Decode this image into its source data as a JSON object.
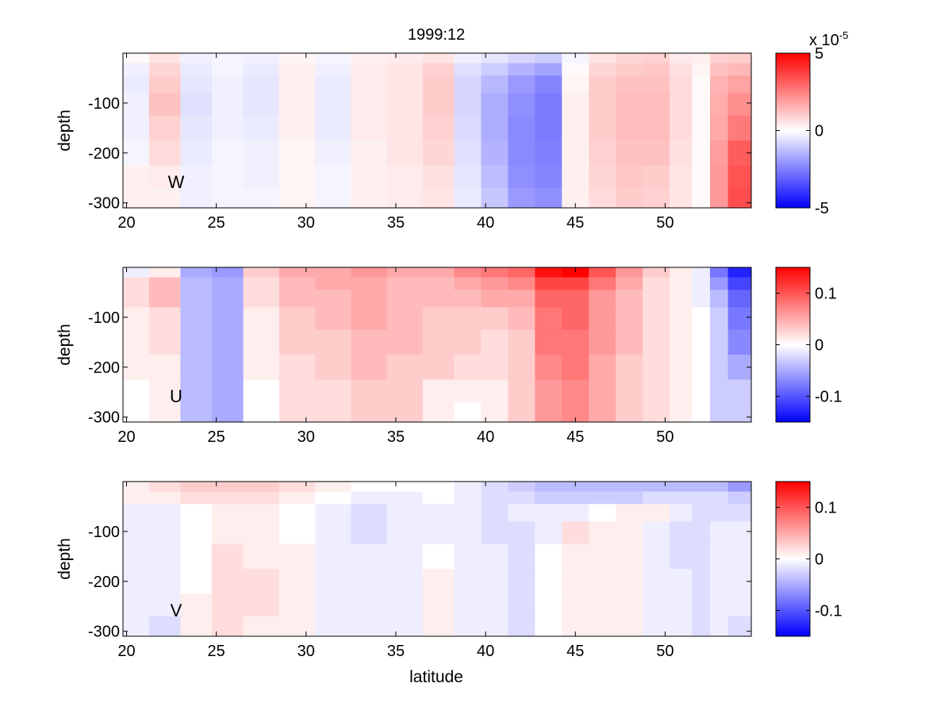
{
  "chart_data": {
    "type": "heatmap",
    "title": "1999:12",
    "xlabel": "latitude",
    "panels": [
      {
        "name": "W",
        "label": "W",
        "ylabel": "depth",
        "xlim": [
          19.8,
          54.8
        ],
        "ylim": [
          -310,
          0
        ],
        "xticks": [
          "20",
          "25",
          "30",
          "35",
          "40",
          "45",
          "50"
        ],
        "yticks": [
          "-100",
          "-200",
          "-300"
        ],
        "colorbar": {
          "clim": [
            -5,
            5
          ],
          "ticks": [
            "5",
            "0",
            "-5"
          ],
          "scale_label": "x 10",
          "scale_exp": "-5"
        },
        "columns_lat": [
          20.5,
          22,
          24,
          25.5,
          27.5,
          29.5,
          31.5,
          33.5,
          35.5,
          37.5,
          39,
          40.5,
          42,
          43.5,
          45,
          46.5,
          48,
          49.5,
          51,
          52,
          53,
          54
        ],
        "depth_rows": [
          -10,
          -30,
          -60,
          -100,
          -150,
          -200,
          -250,
          -290
        ],
        "values": [
          [
            0.1,
            0.5,
            -0.3,
            -0.2,
            -0.3,
            0.2,
            -0.2,
            0.3,
            0.4,
            0.5,
            -0.3,
            -0.5,
            -0.8,
            -1.0,
            -0.2,
            0.5,
            0.8,
            0.9,
            0.4,
            0.3,
            0.9,
            1.0
          ],
          [
            -0.3,
            0.8,
            -0.4,
            -0.2,
            -0.4,
            0.3,
            -0.3,
            0.4,
            0.5,
            0.9,
            -0.6,
            -1.0,
            -1.5,
            -1.8,
            0.1,
            0.8,
            1.0,
            1.1,
            0.6,
            0.2,
            1.2,
            1.4
          ],
          [
            -0.4,
            1.0,
            -0.5,
            -0.3,
            -0.5,
            0.3,
            -0.4,
            0.4,
            0.5,
            1.0,
            -0.8,
            -1.4,
            -2.0,
            -2.4,
            0.2,
            1.0,
            1.2,
            1.2,
            0.7,
            0.1,
            1.5,
            1.8
          ],
          [
            -0.3,
            1.2,
            -0.6,
            -0.3,
            -0.5,
            0.3,
            -0.4,
            0.4,
            0.5,
            1.0,
            -0.8,
            -1.6,
            -2.2,
            -2.6,
            0.3,
            1.0,
            1.3,
            1.3,
            0.7,
            0.1,
            1.6,
            2.2
          ],
          [
            -0.3,
            0.9,
            -0.5,
            -0.3,
            -0.4,
            0.3,
            -0.4,
            0.4,
            0.5,
            0.9,
            -0.7,
            -1.6,
            -2.3,
            -2.6,
            0.3,
            1.0,
            1.3,
            1.3,
            0.7,
            0.1,
            1.7,
            2.6
          ],
          [
            -0.2,
            0.7,
            -0.4,
            -0.2,
            -0.3,
            0.2,
            -0.3,
            0.3,
            0.5,
            0.8,
            -0.6,
            -1.5,
            -2.3,
            -2.5,
            0.3,
            0.9,
            1.2,
            1.2,
            0.6,
            0.1,
            1.9,
            3.2
          ],
          [
            0.3,
            0.4,
            -0.3,
            -0.2,
            -0.3,
            0.2,
            -0.2,
            0.3,
            0.4,
            0.6,
            -0.5,
            -1.3,
            -2.2,
            -2.4,
            0.3,
            0.8,
            1.1,
            1.0,
            0.5,
            0.1,
            2.0,
            3.4
          ],
          [
            0.3,
            0.3,
            -0.3,
            -0.2,
            -0.2,
            0.2,
            -0.2,
            0.3,
            0.4,
            0.5,
            -0.4,
            -1.1,
            -2.0,
            -2.2,
            0.3,
            0.7,
            1.0,
            0.9,
            0.5,
            0.1,
            2.0,
            3.5
          ]
        ]
      },
      {
        "name": "U",
        "label": "U",
        "ylabel": "depth",
        "xlim": [
          19.8,
          54.8
        ],
        "ylim": [
          -310,
          0
        ],
        "xticks": [
          "20",
          "25",
          "30",
          "35",
          "40",
          "45",
          "50"
        ],
        "yticks": [
          "-100",
          "-200",
          "-300"
        ],
        "colorbar": {
          "clim": [
            -0.15,
            0.15
          ],
          "ticks": [
            "0.1",
            "0",
            "-0.1"
          ]
        },
        "columns_lat": [
          20.5,
          22,
          24,
          25.5,
          27.5,
          29.5,
          31.5,
          33.5,
          35.5,
          37.5,
          39,
          40.5,
          42,
          43.5,
          45,
          46.5,
          48,
          49.5,
          51,
          52,
          53,
          54
        ],
        "depth_rows": [
          -10,
          -30,
          -60,
          -100,
          -150,
          -200,
          -250,
          -290
        ],
        "values": [
          [
            -0.01,
            0.01,
            -0.05,
            -0.06,
            0.03,
            0.05,
            0.05,
            0.06,
            0.05,
            0.05,
            0.07,
            0.08,
            0.09,
            0.14,
            0.15,
            0.1,
            0.06,
            0.03,
            0.01,
            -0.01,
            -0.08,
            -0.13
          ],
          [
            0.02,
            0.04,
            -0.04,
            -0.05,
            0.02,
            0.04,
            0.05,
            0.05,
            0.04,
            0.04,
            0.05,
            0.06,
            0.07,
            0.11,
            0.11,
            0.08,
            0.05,
            0.02,
            0.01,
            -0.01,
            -0.06,
            -0.11
          ],
          [
            0.02,
            0.04,
            -0.04,
            -0.05,
            0.02,
            0.04,
            0.04,
            0.05,
            0.04,
            0.04,
            0.04,
            0.05,
            0.05,
            0.09,
            0.09,
            0.06,
            0.04,
            0.02,
            0.01,
            -0.01,
            -0.04,
            -0.09
          ],
          [
            0.01,
            0.02,
            -0.04,
            -0.05,
            0.01,
            0.03,
            0.04,
            0.05,
            0.04,
            0.03,
            0.03,
            0.03,
            0.04,
            0.08,
            0.09,
            0.06,
            0.04,
            0.02,
            0.01,
            0.0,
            -0.03,
            -0.08
          ],
          [
            0.01,
            0.02,
            -0.04,
            -0.05,
            0.01,
            0.03,
            0.03,
            0.04,
            0.04,
            0.03,
            0.03,
            0.02,
            0.03,
            0.08,
            0.08,
            0.06,
            0.04,
            0.02,
            0.01,
            0.0,
            -0.03,
            -0.07
          ],
          [
            0.01,
            0.01,
            -0.04,
            -0.05,
            0.01,
            0.02,
            0.03,
            0.04,
            0.03,
            0.03,
            0.02,
            0.02,
            0.03,
            0.07,
            0.08,
            0.05,
            0.03,
            0.02,
            0.01,
            0.0,
            -0.03,
            -0.05
          ],
          [
            0.0,
            0.01,
            -0.04,
            -0.05,
            0.0,
            0.02,
            0.02,
            0.03,
            0.03,
            0.01,
            0.01,
            0.01,
            0.03,
            0.06,
            0.07,
            0.05,
            0.03,
            0.02,
            0.01,
            0.0,
            -0.03,
            -0.03
          ],
          [
            0.0,
            0.01,
            -0.04,
            -0.05,
            0.0,
            0.02,
            0.02,
            0.03,
            0.03,
            0.01,
            0.0,
            0.01,
            0.03,
            0.06,
            0.07,
            0.05,
            0.03,
            0.02,
            0.01,
            0.0,
            -0.03,
            -0.03
          ]
        ]
      },
      {
        "name": "V",
        "label": "V",
        "ylabel": "depth",
        "xlabel": "latitude",
        "xlim": [
          19.8,
          54.8
        ],
        "ylim": [
          -310,
          0
        ],
        "xticks": [
          "20",
          "25",
          "30",
          "35",
          "40",
          "45",
          "50"
        ],
        "yticks": [
          "-100",
          "-200",
          "-300"
        ],
        "colorbar": {
          "clim": [
            -0.15,
            0.15
          ],
          "ticks": [
            "0.1",
            "0",
            "-0.1"
          ]
        },
        "columns_lat": [
          20.5,
          22,
          24,
          25.5,
          27.5,
          29.5,
          31.5,
          33.5,
          35.5,
          37.5,
          39,
          40.5,
          42,
          43.5,
          45,
          46.5,
          48,
          49.5,
          51,
          52,
          53,
          54
        ],
        "depth_rows": [
          -10,
          -30,
          -60,
          -100,
          -150,
          -200,
          -250,
          -290
        ],
        "values": [
          [
            0.01,
            0.02,
            0.03,
            0.03,
            0.03,
            0.02,
            0.01,
            0.0,
            0.0,
            0.0,
            -0.01,
            -0.02,
            -0.03,
            -0.04,
            -0.04,
            -0.04,
            -0.04,
            -0.04,
            -0.04,
            -0.04,
            -0.04,
            -0.06
          ],
          [
            0.01,
            0.01,
            0.02,
            0.02,
            0.02,
            0.01,
            0.0,
            -0.01,
            -0.01,
            0.0,
            -0.01,
            -0.02,
            -0.02,
            -0.03,
            -0.03,
            -0.03,
            -0.03,
            -0.02,
            -0.02,
            -0.02,
            -0.02,
            -0.03
          ],
          [
            -0.01,
            -0.01,
            0.0,
            0.01,
            0.01,
            0.0,
            -0.01,
            -0.02,
            -0.01,
            -0.01,
            -0.01,
            -0.02,
            -0.01,
            -0.01,
            -0.01,
            0.0,
            0.01,
            0.01,
            -0.01,
            -0.02,
            -0.02,
            -0.02
          ],
          [
            -0.01,
            -0.01,
            0.0,
            0.01,
            0.01,
            0.0,
            -0.01,
            -0.02,
            -0.01,
            -0.01,
            -0.01,
            -0.02,
            -0.02,
            -0.01,
            0.02,
            0.01,
            0.01,
            -0.01,
            -0.02,
            -0.02,
            -0.01,
            -0.01
          ],
          [
            -0.01,
            -0.01,
            0.0,
            0.02,
            0.01,
            0.01,
            -0.01,
            -0.01,
            -0.01,
            0.0,
            -0.01,
            -0.01,
            -0.02,
            0.0,
            0.01,
            0.01,
            0.01,
            -0.01,
            -0.02,
            -0.02,
            -0.01,
            -0.01
          ],
          [
            -0.01,
            -0.01,
            0.0,
            0.02,
            0.02,
            0.01,
            -0.01,
            -0.01,
            -0.01,
            0.01,
            -0.01,
            -0.01,
            -0.02,
            0.0,
            0.01,
            0.01,
            0.01,
            -0.01,
            -0.01,
            -0.02,
            -0.01,
            -0.01
          ],
          [
            -0.01,
            -0.01,
            0.01,
            0.02,
            0.02,
            0.01,
            -0.01,
            -0.01,
            -0.01,
            0.01,
            -0.01,
            -0.01,
            -0.02,
            0.0,
            0.01,
            0.01,
            0.01,
            -0.01,
            -0.01,
            -0.02,
            -0.01,
            -0.01
          ],
          [
            -0.01,
            -0.02,
            0.01,
            0.02,
            0.01,
            0.01,
            -0.01,
            -0.01,
            -0.01,
            0.01,
            -0.01,
            -0.01,
            -0.02,
            0.0,
            0.01,
            0.01,
            0.01,
            -0.01,
            -0.01,
            -0.02,
            -0.01,
            -0.02
          ]
        ]
      }
    ]
  }
}
